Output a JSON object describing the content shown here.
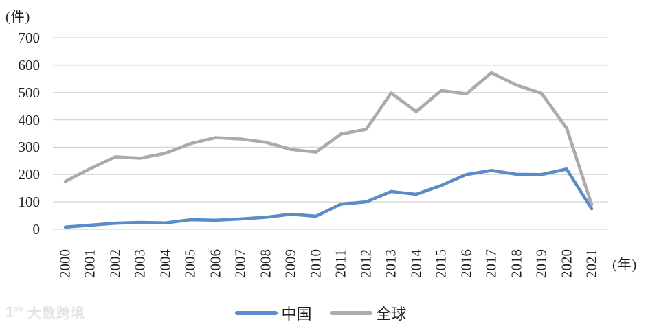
{
  "unit_label": "(件)",
  "x_axis_unit": "(年)",
  "watermark": {
    "logo_digit": "1",
    "logo_oo": "oo",
    "text": "大数跨境"
  },
  "colors": {
    "china_line": "#5b8cc8",
    "global_line": "#ababab",
    "gridline": "#d6d6d6",
    "text": "#1f1f1f",
    "watermark": "#e4e4e4"
  },
  "chart_data": {
    "type": "line",
    "title": "",
    "xlabel": "(年)",
    "ylabel": "(件)",
    "categories": [
      "2000",
      "2001",
      "2002",
      "2003",
      "2004",
      "2005",
      "2006",
      "2007",
      "2008",
      "2009",
      "2010",
      "2011",
      "2012",
      "2013",
      "2014",
      "2015",
      "2016",
      "2017",
      "2018",
      "2019",
      "2020",
      "2021"
    ],
    "series": [
      {
        "name": "中国",
        "color": "#5b8cc8",
        "values": [
          8,
          15,
          22,
          25,
          23,
          35,
          33,
          38,
          44,
          55,
          48,
          92,
          100,
          138,
          128,
          160,
          200,
          215,
          201,
          200,
          220,
          75
        ]
      },
      {
        "name": "全球",
        "color": "#ababab",
        "values": [
          175,
          222,
          265,
          260,
          278,
          313,
          335,
          330,
          318,
          292,
          282,
          348,
          365,
          498,
          430,
          507,
          495,
          572,
          527,
          497,
          370,
          90
        ]
      }
    ],
    "ylim": [
      0,
      700
    ],
    "yticks": [
      0,
      100,
      200,
      300,
      400,
      500,
      600,
      700
    ],
    "grid": true,
    "legend_position": "bottom-center"
  }
}
